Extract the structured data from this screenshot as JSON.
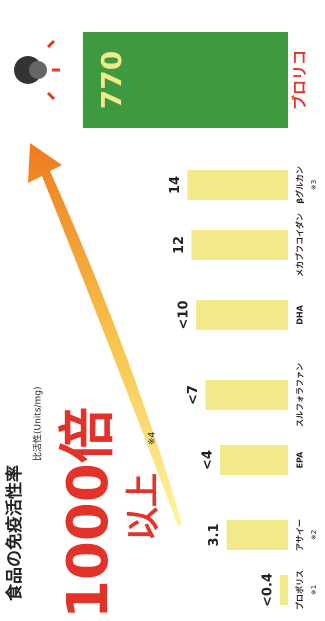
{
  "chart_data": {
    "type": "bar",
    "title": "食品の免疫活性率",
    "subtitle": "比活性(Units/mg)",
    "annotation": {
      "main": "1000倍",
      "sub": "以上",
      "note": "※4"
    },
    "categories": [
      "プロポリス",
      "アサイー",
      "EPA",
      "スルフォラファン",
      "DHA",
      "メカブフコイダン",
      "βグルカン",
      "ブロリコ"
    ],
    "category_notes": [
      "※1",
      "※2",
      null,
      null,
      null,
      null,
      "※3",
      null
    ],
    "values": [
      0.4,
      3.1,
      4,
      7,
      10,
      12,
      14,
      770
    ],
    "value_labels": [
      "<0.4",
      "3.1",
      "<4",
      "<7",
      "<10",
      "12",
      "14",
      "770"
    ],
    "colors": [
      "#f2e98a",
      "#f2e98a",
      "#f2e98a",
      "#f2e98a",
      "#f2e98a",
      "#f2e98a",
      "#f2e98a",
      "#3d9a3f"
    ],
    "log_scale": true
  }
}
